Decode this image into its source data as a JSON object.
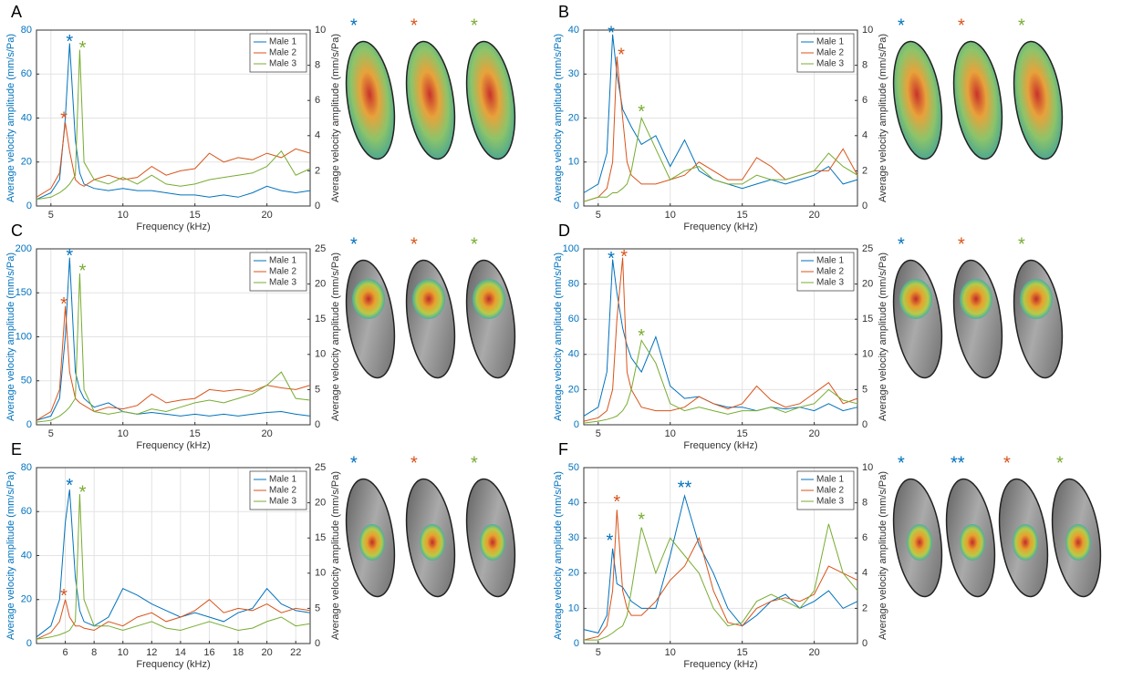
{
  "chart_data": [
    {
      "type": "line",
      "panel": "A",
      "xlabel": "Frequency (kHz)",
      "ylabel": "Average velocity amplitude (mm/s/Pa)",
      "y2label": "Average velocity amplitude (mm/s/Pa)",
      "grid": true,
      "legend": "top-right",
      "x": [
        4,
        5,
        5.6,
        6,
        6.3,
        6.7,
        7,
        7.3,
        8,
        9,
        10,
        11,
        12,
        13,
        14,
        15,
        16,
        17,
        18,
        19,
        20,
        21,
        22,
        23
      ],
      "xlim": [
        4,
        23
      ],
      "xticks": [
        5,
        10,
        15,
        20
      ],
      "ylim": [
        0,
        80
      ],
      "yticks": [
        0,
        20,
        40,
        60,
        80
      ],
      "y2lim": [
        0,
        10
      ],
      "y2ticks": [
        0,
        2,
        4,
        6,
        8,
        10
      ],
      "series": [
        {
          "name": "Male 1",
          "color": "#0072bd",
          "values": [
            3,
            6,
            12,
            40,
            74,
            30,
            15,
            10,
            8,
            7,
            8,
            7,
            7,
            6,
            5,
            5,
            4,
            5,
            4,
            6,
            9,
            7,
            6,
            7
          ]
        },
        {
          "name": "Male 2",
          "color": "#d95319",
          "values": [
            4,
            8,
            15,
            38,
            25,
            12,
            10,
            9,
            12,
            14,
            12,
            13,
            18,
            14,
            16,
            17,
            24,
            20,
            22,
            21,
            24,
            22,
            26,
            24
          ]
        },
        {
          "name": "Male 3",
          "color": "#77ac30",
          "values": [
            3,
            4,
            6,
            8,
            10,
            14,
            71,
            20,
            12,
            10,
            13,
            10,
            14,
            10,
            9,
            10,
            12,
            13,
            14,
            15,
            18,
            25,
            14,
            17
          ]
        }
      ],
      "annotations": [
        {
          "text": "*",
          "color": "#0072bd",
          "x": 6.3,
          "y": 76
        },
        {
          "text": "*",
          "color": "#77ac30",
          "x": 7.2,
          "y": 73
        },
        {
          "text": "*",
          "color": "#d95319",
          "x": 5.9,
          "y": 41
        }
      ],
      "image_labels": [
        {
          "text": "*",
          "color": "#0072bd"
        },
        {
          "text": "*",
          "color": "#d95319"
        },
        {
          "text": "*",
          "color": "#77ac30"
        }
      ]
    },
    {
      "type": "line",
      "panel": "B",
      "xlabel": "Frequency (kHz)",
      "ylabel": "Average velocity amplitude (mm/s/Pa)",
      "y2label": "Average velocity amplitude (mm/s/Pa)",
      "grid": true,
      "legend": "top-right",
      "x": [
        4,
        5,
        5.6,
        6,
        6.3,
        6.7,
        7,
        7.3,
        8,
        9,
        10,
        11,
        12,
        13,
        14,
        15,
        16,
        17,
        18,
        19,
        20,
        21,
        22,
        23
      ],
      "xlim": [
        4,
        23
      ],
      "xticks": [
        5,
        10,
        15,
        20
      ],
      "ylim": [
        0,
        40
      ],
      "yticks": [
        0,
        10,
        20,
        30,
        40
      ],
      "y2lim": [
        0,
        10
      ],
      "y2ticks": [
        0,
        2,
        4,
        6,
        8,
        10
      ],
      "series": [
        {
          "name": "Male 1",
          "color": "#0072bd",
          "values": [
            3,
            5,
            12,
            39,
            30,
            22,
            20,
            18,
            14,
            16,
            9,
            15,
            8,
            6,
            5,
            4,
            5,
            6,
            5,
            6,
            7,
            9,
            5,
            6
          ]
        },
        {
          "name": "Male 2",
          "color": "#d95319",
          "values": [
            1,
            2,
            4,
            10,
            34,
            20,
            10,
            7,
            5,
            5,
            6,
            7,
            10,
            8,
            6,
            6,
            11,
            9,
            6,
            7,
            8,
            8,
            13,
            7
          ]
        },
        {
          "name": "Male 3",
          "color": "#77ac30",
          "values": [
            1,
            2,
            2,
            3,
            3,
            4,
            5,
            8,
            20,
            13,
            6,
            8,
            9,
            6,
            5,
            5,
            7,
            6,
            6,
            7,
            8,
            12,
            9,
            7
          ]
        }
      ],
      "annotations": [
        {
          "text": "*",
          "color": "#0072bd",
          "x": 5.9,
          "y": 40
        },
        {
          "text": "*",
          "color": "#d95319",
          "x": 6.6,
          "y": 35
        },
        {
          "text": "*",
          "color": "#77ac30",
          "x": 8,
          "y": 22
        }
      ],
      "image_labels": [
        {
          "text": "*",
          "color": "#0072bd"
        },
        {
          "text": "*",
          "color": "#d95319"
        },
        {
          "text": "*",
          "color": "#77ac30"
        }
      ]
    },
    {
      "type": "line",
      "panel": "C",
      "xlabel": "Frequency (kHz)",
      "ylabel": "Average velocity amplitude (mm/s/Pa)",
      "y2label": "Average velocity amplitude (mm/s/Pa)",
      "grid": true,
      "legend": "top-right",
      "x": [
        4,
        5,
        5.6,
        6,
        6.3,
        6.7,
        7,
        7.3,
        8,
        9,
        10,
        11,
        12,
        13,
        14,
        15,
        16,
        17,
        18,
        19,
        20,
        21,
        22,
        23
      ],
      "xlim": [
        4,
        23
      ],
      "xticks": [
        5,
        10,
        15,
        20
      ],
      "ylim": [
        0,
        200
      ],
      "yticks": [
        0,
        50,
        100,
        150,
        200
      ],
      "y2lim": [
        0,
        25
      ],
      "y2ticks": [
        0,
        5,
        10,
        15,
        20,
        25
      ],
      "series": [
        {
          "name": "Male 1",
          "color": "#0072bd",
          "values": [
            5,
            10,
            30,
            100,
            190,
            60,
            40,
            30,
            20,
            25,
            15,
            12,
            14,
            12,
            10,
            12,
            10,
            12,
            10,
            12,
            14,
            15,
            12,
            10
          ]
        },
        {
          "name": "Male 2",
          "color": "#d95319",
          "values": [
            5,
            15,
            40,
            135,
            60,
            30,
            25,
            22,
            15,
            20,
            18,
            22,
            35,
            25,
            28,
            30,
            40,
            38,
            40,
            38,
            45,
            42,
            40,
            45
          ]
        },
        {
          "name": "Male 3",
          "color": "#77ac30",
          "values": [
            3,
            5,
            10,
            15,
            20,
            30,
            172,
            40,
            15,
            12,
            15,
            12,
            18,
            15,
            20,
            25,
            28,
            25,
            30,
            35,
            45,
            60,
            30,
            28
          ]
        }
      ],
      "annotations": [
        {
          "text": "*",
          "color": "#0072bd",
          "x": 6.3,
          "y": 195
        },
        {
          "text": "*",
          "color": "#77ac30",
          "x": 7.2,
          "y": 178
        },
        {
          "text": "*",
          "color": "#d95319",
          "x": 5.9,
          "y": 140
        }
      ],
      "image_labels": [
        {
          "text": "*",
          "color": "#0072bd"
        },
        {
          "text": "*",
          "color": "#d95319"
        },
        {
          "text": "*",
          "color": "#77ac30"
        }
      ]
    },
    {
      "type": "line",
      "panel": "D",
      "xlabel": "Frequency (kHz)",
      "ylabel": "Average velocity amplitude (mm/s/Pa)",
      "y2label": "Average velocity amplitude (mm/s/Pa)",
      "grid": true,
      "legend": "top-right",
      "x": [
        4,
        5,
        5.6,
        6,
        6.3,
        6.7,
        7,
        7.3,
        8,
        9,
        10,
        11,
        12,
        13,
        14,
        15,
        16,
        17,
        18,
        19,
        20,
        21,
        22,
        23
      ],
      "xlim": [
        4,
        23
      ],
      "xticks": [
        5,
        10,
        15,
        20
      ],
      "ylim": [
        0,
        100
      ],
      "yticks": [
        0,
        20,
        40,
        60,
        80,
        100
      ],
      "y2lim": [
        0,
        25
      ],
      "y2ticks": [
        0,
        5,
        10,
        15,
        20,
        25
      ],
      "series": [
        {
          "name": "Male 1",
          "color": "#0072bd",
          "values": [
            5,
            10,
            30,
            94,
            75,
            55,
            45,
            38,
            30,
            50,
            22,
            15,
            16,
            12,
            10,
            10,
            8,
            10,
            9,
            10,
            8,
            12,
            8,
            10
          ]
        },
        {
          "name": "Male 2",
          "color": "#d95319",
          "values": [
            2,
            4,
            8,
            20,
            60,
            95,
            30,
            20,
            10,
            8,
            8,
            10,
            16,
            12,
            9,
            12,
            22,
            14,
            10,
            12,
            18,
            24,
            12,
            15
          ]
        },
        {
          "name": "Male 3",
          "color": "#77ac30",
          "values": [
            1,
            2,
            3,
            4,
            5,
            8,
            12,
            20,
            48,
            35,
            12,
            8,
            10,
            8,
            6,
            8,
            8,
            10,
            7,
            10,
            12,
            20,
            14,
            12
          ]
        }
      ],
      "annotations": [
        {
          "text": "*",
          "color": "#0072bd",
          "x": 5.9,
          "y": 96
        },
        {
          "text": "*",
          "color": "#d95319",
          "x": 6.8,
          "y": 97
        },
        {
          "text": "*",
          "color": "#77ac30",
          "x": 8,
          "y": 52
        }
      ],
      "image_labels": [
        {
          "text": "*",
          "color": "#0072bd"
        },
        {
          "text": "*",
          "color": "#d95319"
        },
        {
          "text": "*",
          "color": "#77ac30"
        }
      ]
    },
    {
      "type": "line",
      "panel": "E",
      "xlabel": "Frequency (kHz)",
      "ylabel": "Average velocity amplitude (mm/s/Pa)",
      "y2label": "Average velocity amplitude (mm/s/Pa)",
      "grid": true,
      "legend": "top-right",
      "x": [
        4,
        5,
        5.6,
        6,
        6.3,
        6.7,
        7,
        7.3,
        8,
        9,
        10,
        11,
        12,
        13,
        14,
        15,
        16,
        17,
        18,
        19,
        20,
        21,
        22,
        23
      ],
      "xlim": [
        4,
        23
      ],
      "xticks": [
        6,
        8,
        10,
        12,
        14,
        16,
        18,
        20,
        22
      ],
      "ylim": [
        0,
        80
      ],
      "yticks": [
        0,
        20,
        40,
        60,
        80
      ],
      "y2lim": [
        0,
        25
      ],
      "y2ticks": [
        0,
        5,
        10,
        15,
        20,
        25
      ],
      "series": [
        {
          "name": "Male 1",
          "color": "#0072bd",
          "values": [
            3,
            8,
            20,
            55,
            70,
            30,
            15,
            10,
            8,
            12,
            25,
            22,
            18,
            15,
            12,
            14,
            12,
            10,
            14,
            16,
            25,
            18,
            15,
            14
          ]
        },
        {
          "name": "Male 2",
          "color": "#d95319",
          "values": [
            2,
            5,
            10,
            20,
            12,
            8,
            8,
            7,
            6,
            10,
            8,
            12,
            14,
            10,
            12,
            15,
            20,
            14,
            16,
            15,
            18,
            14,
            16,
            15
          ]
        },
        {
          "name": "Male 3",
          "color": "#77ac30",
          "values": [
            2,
            3,
            4,
            5,
            6,
            10,
            68,
            20,
            8,
            8,
            6,
            8,
            10,
            7,
            6,
            8,
            10,
            8,
            6,
            7,
            10,
            12,
            8,
            9
          ]
        }
      ],
      "annotations": [
        {
          "text": "*",
          "color": "#0072bd",
          "x": 6.3,
          "y": 73
        },
        {
          "text": "*",
          "color": "#77ac30",
          "x": 7.2,
          "y": 70
        },
        {
          "text": "*",
          "color": "#d95319",
          "x": 5.9,
          "y": 23
        }
      ],
      "image_labels": [
        {
          "text": "*",
          "color": "#0072bd"
        },
        {
          "text": "*",
          "color": "#d95319"
        },
        {
          "text": "*",
          "color": "#77ac30"
        }
      ]
    },
    {
      "type": "line",
      "panel": "F",
      "xlabel": "Frequency (kHz)",
      "ylabel": "Average velocity amplitude (mm/s/Pa)",
      "y2label": "Average velocity amplitude (mm/s/Pa)",
      "grid": true,
      "legend": "top-right",
      "x": [
        4,
        5,
        5.6,
        6,
        6.3,
        6.7,
        7,
        7.3,
        8,
        9,
        10,
        11,
        12,
        13,
        14,
        15,
        16,
        17,
        18,
        19,
        20,
        21,
        22,
        23
      ],
      "xlim": [
        4,
        23
      ],
      "xticks": [
        5,
        10,
        15,
        20
      ],
      "ylim": [
        0,
        50
      ],
      "yticks": [
        0,
        10,
        20,
        30,
        40,
        50
      ],
      "y2lim": [
        0,
        10
      ],
      "y2ticks": [
        0,
        2,
        4,
        6,
        8,
        10
      ],
      "series": [
        {
          "name": "Male 1",
          "color": "#0072bd",
          "values": [
            4,
            3,
            8,
            27,
            17,
            16,
            14,
            12,
            10,
            10,
            25,
            42,
            28,
            20,
            10,
            5,
            8,
            12,
            14,
            10,
            12,
            15,
            10,
            12
          ]
        },
        {
          "name": "Male 2",
          "color": "#d95319",
          "values": [
            1,
            2,
            5,
            15,
            38,
            15,
            10,
            8,
            8,
            12,
            18,
            22,
            30,
            15,
            6,
            5,
            10,
            12,
            13,
            12,
            14,
            22,
            20,
            18
          ]
        },
        {
          "name": "Male 3",
          "color": "#77ac30",
          "values": [
            1,
            1,
            2,
            3,
            4,
            5,
            8,
            15,
            33,
            20,
            30,
            25,
            20,
            10,
            5,
            6,
            12,
            14,
            12,
            10,
            15,
            34,
            20,
            15
          ]
        }
      ],
      "annotations": [
        {
          "text": "*",
          "color": "#0072bd",
          "x": 5.8,
          "y": 30
        },
        {
          "text": "**",
          "color": "#0072bd",
          "x": 11,
          "y": 45
        },
        {
          "text": "*",
          "color": "#d95319",
          "x": 6.3,
          "y": 41
        },
        {
          "text": "*",
          "color": "#77ac30",
          "x": 8,
          "y": 36
        }
      ],
      "image_labels": [
        {
          "text": "*",
          "color": "#0072bd"
        },
        {
          "text": "**",
          "color": "#0072bd"
        },
        {
          "text": "*",
          "color": "#d95319"
        },
        {
          "text": "*",
          "color": "#77ac30"
        }
      ]
    }
  ]
}
